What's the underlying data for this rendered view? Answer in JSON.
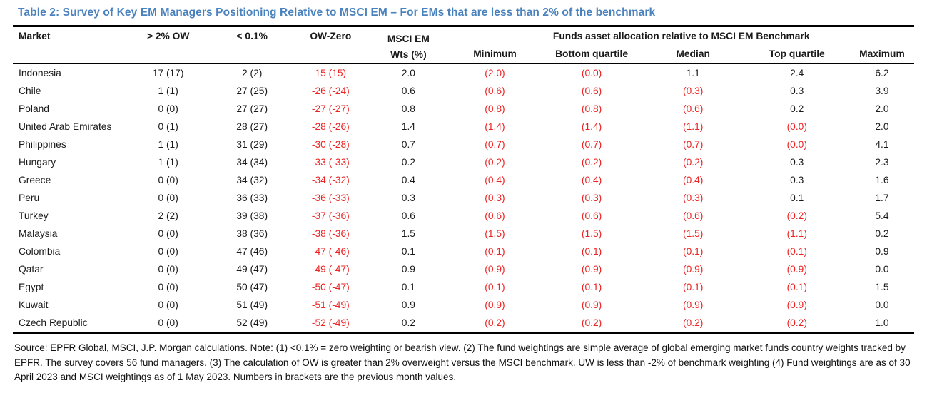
{
  "title": "Table 2: Survey of Key EM Managers Positioning Relative to MSCI EM – For EMs that are less than 2% of the benchmark",
  "colors": {
    "title_blue": "#4a82be",
    "negative_red": "#ee2222",
    "rule_black": "#000000"
  },
  "table": {
    "group_header": "Funds asset allocation relative to MSCI EM Benchmark",
    "columns": [
      {
        "key": "market",
        "label": "Market"
      },
      {
        "key": "ow2",
        "label": "> 2% OW"
      },
      {
        "key": "lt01",
        "label": "< 0.1%"
      },
      {
        "key": "owzero",
        "label": "OW-Zero"
      },
      {
        "key": "wts",
        "label": "MSCI EM",
        "label2": "Wts (%)"
      },
      {
        "key": "min",
        "label": "Minimum"
      },
      {
        "key": "bq",
        "label": "Bottom quartile"
      },
      {
        "key": "med",
        "label": "Median"
      },
      {
        "key": "tq",
        "label": "Top quartile"
      },
      {
        "key": "max",
        "label": "Maximum"
      }
    ],
    "rows": [
      {
        "market": "Indonesia",
        "ow2": "17 (17)",
        "lt01": "2 (2)",
        "owzero": "15 (15)",
        "wts": "2.0",
        "min": "(2.0)",
        "bq": "(0.0)",
        "med": "1.1",
        "tq": "2.4",
        "max": "6.2"
      },
      {
        "market": "Chile",
        "ow2": "1 (1)",
        "lt01": "27 (25)",
        "owzero": "-26 (-24)",
        "wts": "0.6",
        "min": "(0.6)",
        "bq": "(0.6)",
        "med": "(0.3)",
        "tq": "0.3",
        "max": "3.9"
      },
      {
        "market": "Poland",
        "ow2": "0 (0)",
        "lt01": "27 (27)",
        "owzero": "-27 (-27)",
        "wts": "0.8",
        "min": "(0.8)",
        "bq": "(0.8)",
        "med": "(0.6)",
        "tq": "0.2",
        "max": "2.0"
      },
      {
        "market": "United Arab Emirates",
        "ow2": "0 (1)",
        "lt01": "28 (27)",
        "owzero": "-28 (-26)",
        "wts": "1.4",
        "min": "(1.4)",
        "bq": "(1.4)",
        "med": "(1.1)",
        "tq": "(0.0)",
        "max": "2.0"
      },
      {
        "market": "Philippines",
        "ow2": "1 (1)",
        "lt01": "31 (29)",
        "owzero": "-30 (-28)",
        "wts": "0.7",
        "min": "(0.7)",
        "bq": "(0.7)",
        "med": "(0.7)",
        "tq": "(0.0)",
        "max": "4.1"
      },
      {
        "market": "Hungary",
        "ow2": "1 (1)",
        "lt01": "34 (34)",
        "owzero": "-33 (-33)",
        "wts": "0.2",
        "min": "(0.2)",
        "bq": "(0.2)",
        "med": "(0.2)",
        "tq": "0.3",
        "max": "2.3"
      },
      {
        "market": "Greece",
        "ow2": "0 (0)",
        "lt01": "34 (32)",
        "owzero": "-34 (-32)",
        "wts": "0.4",
        "min": "(0.4)",
        "bq": "(0.4)",
        "med": "(0.4)",
        "tq": "0.3",
        "max": "1.6"
      },
      {
        "market": "Peru",
        "ow2": "0 (0)",
        "lt01": "36 (33)",
        "owzero": "-36 (-33)",
        "wts": "0.3",
        "min": "(0.3)",
        "bq": "(0.3)",
        "med": "(0.3)",
        "tq": "0.1",
        "max": "1.7"
      },
      {
        "market": "Turkey",
        "ow2": "2 (2)",
        "lt01": "39 (38)",
        "owzero": "-37 (-36)",
        "wts": "0.6",
        "min": "(0.6)",
        "bq": "(0.6)",
        "med": "(0.6)",
        "tq": "(0.2)",
        "max": "5.4"
      },
      {
        "market": "Malaysia",
        "ow2": "0 (0)",
        "lt01": "38 (36)",
        "owzero": "-38 (-36)",
        "wts": "1.5",
        "min": "(1.5)",
        "bq": "(1.5)",
        "med": "(1.5)",
        "tq": "(1.1)",
        "max": "0.2"
      },
      {
        "market": "Colombia",
        "ow2": "0 (0)",
        "lt01": "47 (46)",
        "owzero": "-47 (-46)",
        "wts": "0.1",
        "min": "(0.1)",
        "bq": "(0.1)",
        "med": "(0.1)",
        "tq": "(0.1)",
        "max": "0.9"
      },
      {
        "market": "Qatar",
        "ow2": "0 (0)",
        "lt01": "49 (47)",
        "owzero": "-49 (-47)",
        "wts": "0.9",
        "min": "(0.9)",
        "bq": "(0.9)",
        "med": "(0.9)",
        "tq": "(0.9)",
        "max": "0.0"
      },
      {
        "market": "Egypt",
        "ow2": "0 (0)",
        "lt01": "50 (47)",
        "owzero": "-50 (-47)",
        "wts": "0.1",
        "min": "(0.1)",
        "bq": "(0.1)",
        "med": "(0.1)",
        "tq": "(0.1)",
        "max": "1.5"
      },
      {
        "market": "Kuwait",
        "ow2": "0 (0)",
        "lt01": "51 (49)",
        "owzero": "-51 (-49)",
        "wts": "0.9",
        "min": "(0.9)",
        "bq": "(0.9)",
        "med": "(0.9)",
        "tq": "(0.9)",
        "max": "0.0"
      },
      {
        "market": "Czech Republic",
        "ow2": "0 (0)",
        "lt01": "52 (49)",
        "owzero": "-52 (-49)",
        "wts": "0.2",
        "min": "(0.2)",
        "bq": "(0.2)",
        "med": "(0.2)",
        "tq": "(0.2)",
        "max": "1.0"
      }
    ]
  },
  "footnote": "Source: EPFR Global, MSCI, J.P. Morgan calculations. Note: (1) <0.1% = zero weighting or bearish view. (2) The fund weightings are simple average of global emerging market funds country weights tracked by EPFR. The survey covers 56 fund managers. (3) The calculation of OW is greater than 2% overweight versus the MSCI benchmark. UW is less than -2% of benchmark weighting (4) Fund weightings are as of 30 April 2023 and MSCI weightings as of 1 May 2023. Numbers in brackets are the previous month values."
}
